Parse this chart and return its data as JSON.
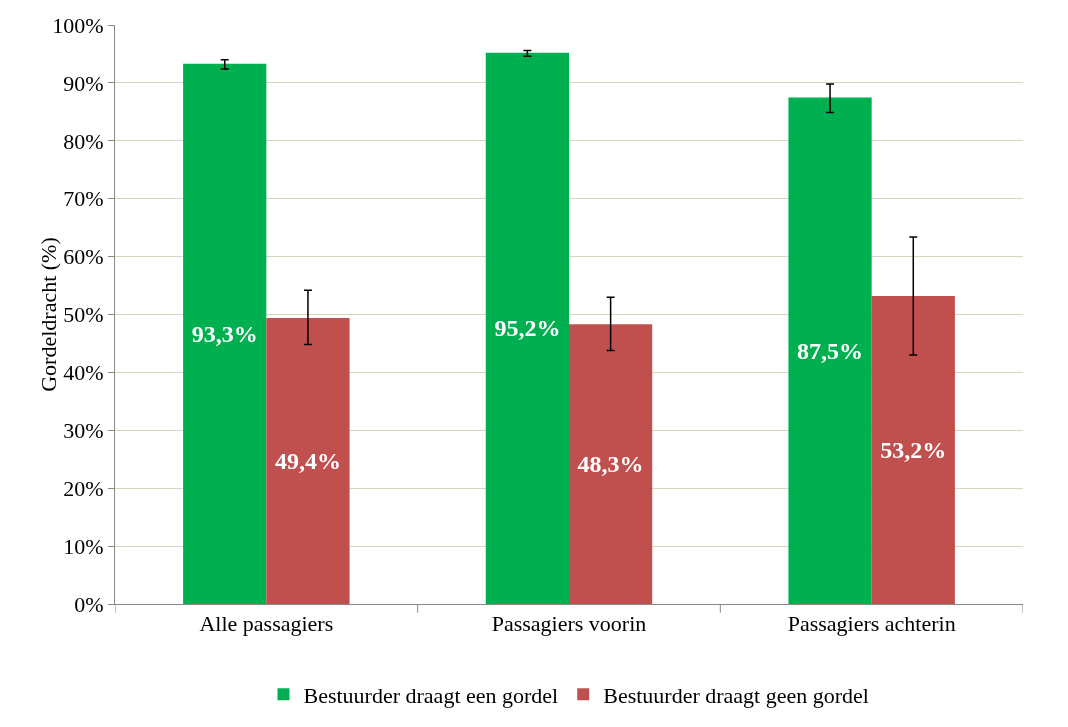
{
  "chart_data": {
    "type": "bar",
    "ylabel": "Gordeldracht (%)",
    "categories": [
      "Alle passagiers",
      "Passagiers voorin",
      "Passagiers achterin"
    ],
    "series": [
      {
        "name": "Bestuurder draagt een gordel",
        "color": "#00b050",
        "values": [
          93.3,
          95.2,
          87.5
        ],
        "value_labels": [
          "93,3%",
          "95,2%",
          "87,5%"
        ],
        "errors": [
          [
            92.4,
            94.0
          ],
          [
            94.6,
            95.6
          ],
          [
            84.9,
            89.8
          ]
        ]
      },
      {
        "name": "Bestuurder draagt geen gordel",
        "color": "#c0504d",
        "values": [
          49.4,
          48.3,
          53.2
        ],
        "value_labels": [
          "49,4%",
          "48,3%",
          "53,2%"
        ],
        "errors": [
          [
            44.8,
            54.2
          ],
          [
            43.8,
            53.0
          ],
          [
            43.0,
            63.4
          ]
        ]
      }
    ],
    "ylim": [
      0,
      100
    ],
    "yticks": [
      {
        "value": 0,
        "label": "0%"
      },
      {
        "value": 10,
        "label": "10%"
      },
      {
        "value": 20,
        "label": "20%"
      },
      {
        "value": 30,
        "label": "30%"
      },
      {
        "value": 40,
        "label": "40%"
      },
      {
        "value": 50,
        "label": "50%"
      },
      {
        "value": 60,
        "label": "60%"
      },
      {
        "value": 70,
        "label": "70%"
      },
      {
        "value": 80,
        "label": "80%"
      },
      {
        "value": 90,
        "label": "90%"
      },
      {
        "value": 100,
        "label": "100%"
      }
    ],
    "grid": "y",
    "legend": "bottom"
  }
}
